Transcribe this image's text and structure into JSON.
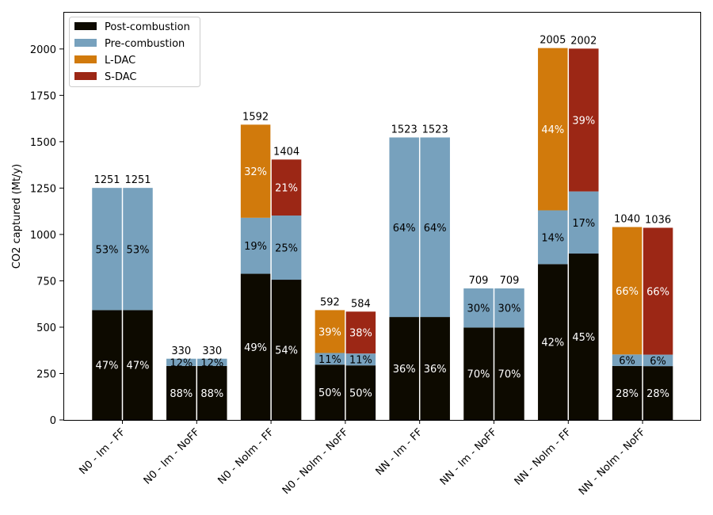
{
  "chart_data": {
    "type": "bar",
    "stacked": true,
    "ylabel": "CO2 captured (Mt/y)",
    "xlabel": "",
    "ylim": [
      0,
      2200
    ],
    "yticks": [
      0,
      250,
      500,
      750,
      1000,
      1250,
      1500,
      1750,
      2000
    ],
    "grid": false,
    "legend_position": "top-left",
    "categories": [
      "N0 - Im - FF",
      "N0 - Im - NoFF",
      "N0 - NoIm - FF",
      "N0 - NoIm - NoFF",
      "NN - Im - FF",
      "NN - Im - NoFF",
      "NN - NoIm - FF",
      "NN - NoIm - NoFF"
    ],
    "series": [
      {
        "name": "Post-combustion",
        "color": "#0d0a00"
      },
      {
        "name": "Pre-combustion",
        "color": "#77a1bd"
      },
      {
        "name": "L-DAC",
        "color": "#d17a0c"
      },
      {
        "name": "S-DAC",
        "color": "#9c2715"
      }
    ],
    "bars": [
      {
        "category": "N0 - Im - FF",
        "total": "1251",
        "segments": [
          {
            "series": "Post-combustion",
            "value": 592,
            "label": "47%"
          },
          {
            "series": "Pre-combustion",
            "value": 659,
            "label": "53%"
          }
        ]
      },
      {
        "category": "N0 - Im - FF",
        "total": "1251",
        "segments": [
          {
            "series": "Post-combustion",
            "value": 592,
            "label": "47%"
          },
          {
            "series": "Pre-combustion",
            "value": 659,
            "label": "53%"
          }
        ]
      },
      {
        "category": "N0 - Im - NoFF",
        "total": "330",
        "segments": [
          {
            "series": "Post-combustion",
            "value": 291,
            "label": "88%"
          },
          {
            "series": "Pre-combustion",
            "value": 39,
            "label": "12%"
          }
        ]
      },
      {
        "category": "N0 - Im - NoFF",
        "total": "330",
        "segments": [
          {
            "series": "Post-combustion",
            "value": 291,
            "label": "88%"
          },
          {
            "series": "Pre-combustion",
            "value": 39,
            "label": "12%"
          }
        ]
      },
      {
        "category": "N0 - NoIm - FF",
        "total": "1592",
        "segments": [
          {
            "series": "Post-combustion",
            "value": 788,
            "label": "49%"
          },
          {
            "series": "Pre-combustion",
            "value": 302,
            "label": "19%"
          },
          {
            "series": "L-DAC",
            "value": 502,
            "label": "32%"
          }
        ]
      },
      {
        "category": "N0 - NoIm - FF",
        "total": "1404",
        "segments": [
          {
            "series": "Post-combustion",
            "value": 756,
            "label": "54%"
          },
          {
            "series": "Pre-combustion",
            "value": 346,
            "label": "25%"
          },
          {
            "series": "S-DAC",
            "value": 302,
            "label": "21%"
          }
        ]
      },
      {
        "category": "N0 - NoIm - NoFF",
        "total": "592",
        "segments": [
          {
            "series": "Post-combustion",
            "value": 298,
            "label": "50%"
          },
          {
            "series": "Pre-combustion",
            "value": 63,
            "label": "11%"
          },
          {
            "series": "L-DAC",
            "value": 231,
            "label": "39%"
          }
        ]
      },
      {
        "category": "N0 - NoIm - NoFF",
        "total": "584",
        "segments": [
          {
            "series": "Post-combustion",
            "value": 294,
            "label": "50%"
          },
          {
            "series": "Pre-combustion",
            "value": 64,
            "label": "11%"
          },
          {
            "series": "S-DAC",
            "value": 226,
            "label": "38%"
          }
        ]
      },
      {
        "category": "NN - Im - FF",
        "total": "1523",
        "segments": [
          {
            "series": "Post-combustion",
            "value": 555,
            "label": "36%"
          },
          {
            "series": "Pre-combustion",
            "value": 968,
            "label": "64%"
          }
        ]
      },
      {
        "category": "NN - Im - FF",
        "total": "1523",
        "segments": [
          {
            "series": "Post-combustion",
            "value": 555,
            "label": "36%"
          },
          {
            "series": "Pre-combustion",
            "value": 968,
            "label": "64%"
          }
        ]
      },
      {
        "category": "NN - Im - NoFF",
        "total": "709",
        "segments": [
          {
            "series": "Post-combustion",
            "value": 498,
            "label": "70%"
          },
          {
            "series": "Pre-combustion",
            "value": 211,
            "label": "30%"
          }
        ]
      },
      {
        "category": "NN - Im - NoFF",
        "total": "709",
        "segments": [
          {
            "series": "Post-combustion",
            "value": 498,
            "label": "70%"
          },
          {
            "series": "Pre-combustion",
            "value": 211,
            "label": "30%"
          }
        ]
      },
      {
        "category": "NN - NoIm - FF",
        "total": "2005",
        "segments": [
          {
            "series": "Post-combustion",
            "value": 840,
            "label": "42%"
          },
          {
            "series": "Pre-combustion",
            "value": 290,
            "label": "14%"
          },
          {
            "series": "L-DAC",
            "value": 875,
            "label": "44%"
          }
        ]
      },
      {
        "category": "NN - NoIm - FF",
        "total": "2002",
        "segments": [
          {
            "series": "Post-combustion",
            "value": 897,
            "label": "45%"
          },
          {
            "series": "Pre-combustion",
            "value": 335,
            "label": "17%"
          },
          {
            "series": "S-DAC",
            "value": 770,
            "label": "39%"
          }
        ]
      },
      {
        "category": "NN - NoIm - NoFF",
        "total": "1040",
        "segments": [
          {
            "series": "Post-combustion",
            "value": 291,
            "label": "28%"
          },
          {
            "series": "Pre-combustion",
            "value": 62,
            "label": "6%"
          },
          {
            "series": "L-DAC",
            "value": 687,
            "label": "66%"
          }
        ]
      },
      {
        "category": "NN - NoIm - NoFF",
        "total": "1036",
        "segments": [
          {
            "series": "Post-combustion",
            "value": 290,
            "label": "28%"
          },
          {
            "series": "Pre-combustion",
            "value": 62,
            "label": "6%"
          },
          {
            "series": "S-DAC",
            "value": 684,
            "label": "66%"
          }
        ]
      }
    ]
  }
}
